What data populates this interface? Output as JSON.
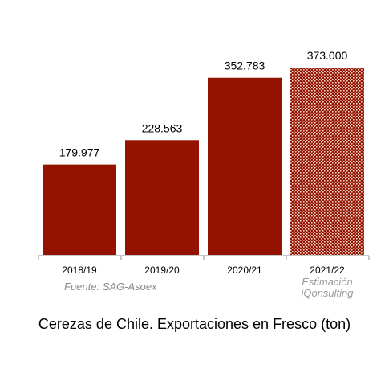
{
  "chart_data": {
    "type": "bar",
    "title": "Cerezas de Chile. Exportaciones en Fresco (ton)",
    "categories": [
      "2018/19",
      "2019/20",
      "2020/21",
      "2021/22"
    ],
    "values": [
      179977,
      228563,
      352783,
      373000
    ],
    "value_labels": [
      "179.977",
      "228.563",
      "352.783",
      "373.000"
    ],
    "estimated": [
      false,
      false,
      false,
      true
    ],
    "xlabel": "",
    "ylabel": "",
    "ylim": [
      0,
      410000
    ],
    "grid": false,
    "legend": "none",
    "colors": {
      "bar": "#931200",
      "estimate_pattern": "#931200",
      "axis": "#8c8c8c"
    }
  },
  "source_note": "Fuente: SAG-Asoex",
  "estimate_note": {
    "line1": "Estimación",
    "line2": "iQonsulting"
  }
}
